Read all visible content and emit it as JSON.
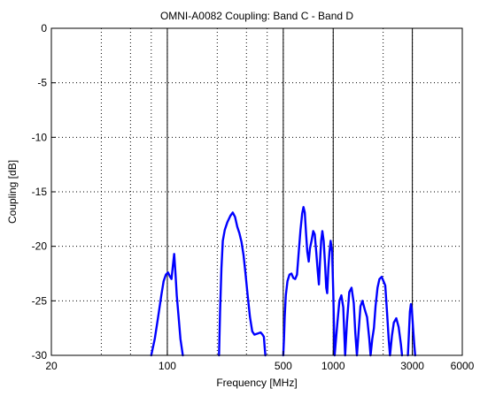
{
  "chart_data": {
    "type": "line",
    "title": "OMNI-A0082 Coupling: Band C - Band D",
    "xlabel": "Frequency [MHz]",
    "ylabel": "Coupling [dB]",
    "xscale": "log",
    "xlim": [
      20,
      6000
    ],
    "ylim": [
      -30,
      0
    ],
    "grid": "dotted",
    "x_ticks": [
      20,
      100,
      500,
      1000,
      3000,
      6000
    ],
    "x_tick_labels": [
      "20",
      "100",
      "500",
      "1000",
      "3000",
      "6000"
    ],
    "y_ticks": [
      0,
      -5,
      -10,
      -15,
      -20,
      -25,
      -30
    ],
    "y_tick_labels": [
      "0",
      "-5",
      "-10",
      "-15",
      "-20",
      "-25",
      "-30"
    ],
    "x_minor_gridlines": [
      40,
      60,
      80,
      200,
      300,
      400,
      2000
    ],
    "solid_vertical_markers": [
      100,
      500,
      1000,
      3000
    ],
    "series": [
      {
        "color": "#0000ff",
        "segments": [
          [
            [
              80,
              -30
            ],
            [
              84,
              -28.5
            ],
            [
              88,
              -26.5
            ],
            [
              92,
              -24.5
            ],
            [
              95,
              -23.2
            ],
            [
              98,
              -22.6
            ],
            [
              101,
              -22.4
            ],
            [
              104,
              -22.8
            ],
            [
              106,
              -23.0
            ],
            [
              108,
              -21.8
            ],
            [
              110,
              -20.7
            ],
            [
              112,
              -22.5
            ],
            [
              114,
              -24.5
            ],
            [
              117,
              -26.5
            ],
            [
              120,
              -28.5
            ],
            [
              124,
              -30
            ]
          ],
          [
            [
              205,
              -30
            ],
            [
              208,
              -26
            ],
            [
              212,
              -22
            ],
            [
              216,
              -19.5
            ],
            [
              222,
              -18.5
            ],
            [
              230,
              -17.8
            ],
            [
              240,
              -17.2
            ],
            [
              248,
              -16.9
            ],
            [
              256,
              -17.3
            ],
            [
              264,
              -18.2
            ],
            [
              272,
              -18.8
            ],
            [
              280,
              -19.6
            ],
            [
              288,
              -20.8
            ],
            [
              296,
              -22.5
            ],
            [
              305,
              -24.5
            ],
            [
              315,
              -26.5
            ],
            [
              325,
              -27.8
            ],
            [
              335,
              -28.1
            ],
            [
              350,
              -28.0
            ],
            [
              365,
              -27.9
            ],
            [
              375,
              -28.1
            ],
            [
              382,
              -28.3
            ],
            [
              386,
              -29.2
            ],
            [
              390,
              -30
            ]
          ],
          [
            [
              500,
              -30
            ],
            [
              505,
              -28.5
            ],
            [
              510,
              -26.5
            ],
            [
              518,
              -24.5
            ],
            [
              530,
              -23.2
            ],
            [
              545,
              -22.6
            ],
            [
              560,
              -22.5
            ],
            [
              575,
              -22.9
            ],
            [
              590,
              -23.0
            ],
            [
              605,
              -22.6
            ],
            [
              620,
              -20.5
            ],
            [
              635,
              -18.5
            ],
            [
              650,
              -17.0
            ],
            [
              662,
              -16.4
            ],
            [
              674,
              -16.9
            ],
            [
              686,
              -18.8
            ],
            [
              698,
              -20.5
            ],
            [
              712,
              -21.4
            ],
            [
              724,
              -20.2
            ],
            [
              740,
              -19.5
            ],
            [
              758,
              -18.6
            ],
            [
              774,
              -18.9
            ],
            [
              790,
              -20.5
            ],
            [
              806,
              -22.2
            ],
            [
              820,
              -23.5
            ],
            [
              832,
              -21.5
            ],
            [
              846,
              -19.5
            ],
            [
              860,
              -18.6
            ],
            [
              876,
              -19.5
            ],
            [
              892,
              -21.5
            ],
            [
              908,
              -23.8
            ],
            [
              920,
              -24.3
            ],
            [
              935,
              -22.0
            ],
            [
              950,
              -20.5
            ],
            [
              965,
              -19.5
            ],
            [
              985,
              -20.5
            ],
            [
              1000,
              -24.0
            ],
            [
              1010,
              -27.0
            ],
            [
              1020,
              -30
            ],
            [
              1060,
              -27.0
            ],
            [
              1090,
              -25.0
            ],
            [
              1120,
              -24.5
            ],
            [
              1150,
              -25.6
            ],
            [
              1180,
              -30
            ],
            [
              1210,
              -27.0
            ],
            [
              1250,
              -24.2
            ],
            [
              1290,
              -23.8
            ],
            [
              1330,
              -25.2
            ],
            [
              1360,
              -28.0
            ],
            [
              1390,
              -30
            ],
            [
              1420,
              -28.0
            ],
            [
              1460,
              -25.5
            ],
            [
              1500,
              -25.0
            ],
            [
              1550,
              -25.8
            ],
            [
              1600,
              -26.5
            ],
            [
              1650,
              -28.5
            ],
            [
              1680,
              -30
            ],
            [
              1720,
              -28.5
            ],
            [
              1760,
              -27.5
            ],
            [
              1800,
              -25.5
            ],
            [
              1850,
              -23.8
            ],
            [
              1900,
              -23.0
            ],
            [
              1960,
              -22.8
            ],
            [
              2010,
              -23.2
            ],
            [
              2060,
              -23.6
            ],
            [
              2110,
              -26.0
            ],
            [
              2160,
              -28.5
            ],
            [
              2200,
              -30
            ],
            [
              2260,
              -28.2
            ],
            [
              2320,
              -27.0
            ],
            [
              2400,
              -26.6
            ],
            [
              2480,
              -27.4
            ],
            [
              2560,
              -29.0
            ],
            [
              2600,
              -30
            ]
          ],
          [
            [
              2820,
              -30
            ],
            [
              2860,
              -28.0
            ],
            [
              2900,
              -26.0
            ],
            [
              2940,
              -25.3
            ],
            [
              2980,
              -25.8
            ],
            [
              3030,
              -27.5
            ],
            [
              3080,
              -29.0
            ],
            [
              3120,
              -30
            ]
          ]
        ]
      }
    ]
  }
}
